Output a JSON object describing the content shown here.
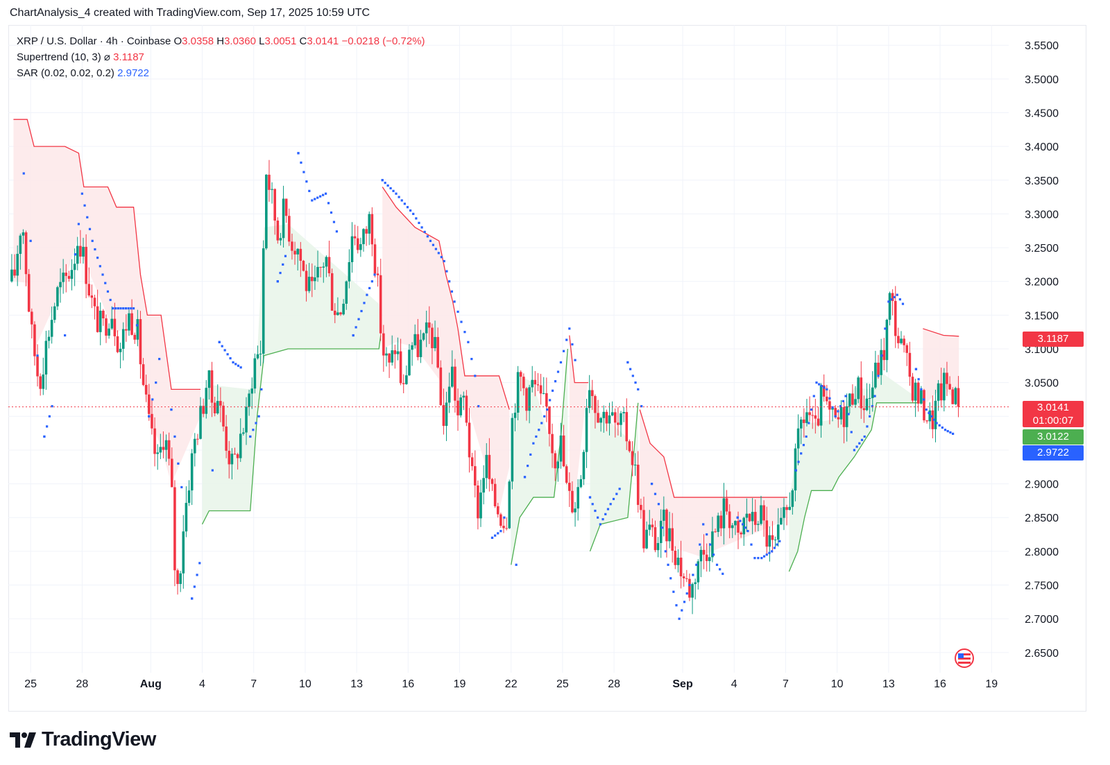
{
  "header": {
    "title": "ChartAnalysis_4 created with TradingView.com, Sep 17, 2025 10:59 UTC"
  },
  "legend": {
    "symbol": "XRP / U.S. Dollar · 4h · Coinbase",
    "o_label": "O",
    "o": "3.0358",
    "h_label": "H",
    "h": "3.0360",
    "l_label": "L",
    "l": "3.0051",
    "c_label": "C",
    "c": "3.0141",
    "change": "−0.0218 (−0.72%)",
    "supertrend_label": "Supertrend (10, 3)",
    "supertrend_eye": "⌀",
    "supertrend_value": "3.1187",
    "sar_label": "SAR (0.02, 0.02, 0.2)",
    "sar_value": "2.9722"
  },
  "price_tags": {
    "supertrend": "3.1187",
    "last": "3.0141",
    "countdown": "01:00:07",
    "green": "3.0122",
    "sar": "2.9722"
  },
  "colors": {
    "up": "#089981",
    "down": "#f23645",
    "sar": "#2962ff",
    "st_up_line": "#4caf50",
    "st_down_line": "#f23645",
    "st_up_fill": "#e8f5e9",
    "st_down_fill": "#fde7e9",
    "grid": "#f0f3fa",
    "axis_text": "#131722"
  },
  "brand": {
    "name": "TradingView"
  },
  "chart_data": {
    "type": "candlestick",
    "title": "XRP / U.S. Dollar · 4h · Coinbase",
    "xlabel": "",
    "ylabel": "",
    "ylim": [
      2.62,
      3.58
    ],
    "y_ticks": [
      "3.5500",
      "3.5000",
      "3.4500",
      "3.4000",
      "3.3500",
      "3.3000",
      "3.2500",
      "3.2000",
      "3.1500",
      "3.1000",
      "3.0500",
      "3.0000",
      "2.9500",
      "2.9000",
      "2.8500",
      "2.8000",
      "2.7500",
      "2.7000",
      "2.6500"
    ],
    "y_tick_values": [
      3.55,
      3.5,
      3.45,
      3.4,
      3.35,
      3.3,
      3.25,
      3.2,
      3.15,
      3.1,
      3.05,
      3.0,
      2.95,
      2.9,
      2.85,
      2.8,
      2.75,
      2.7,
      2.65
    ],
    "x_ticks": [
      {
        "label": "25",
        "day": -6,
        "bold": false
      },
      {
        "label": "28",
        "day": -3,
        "bold": false
      },
      {
        "label": "Aug",
        "day": 1,
        "bold": true
      },
      {
        "label": "4",
        "day": 4,
        "bold": false
      },
      {
        "label": "7",
        "day": 7,
        "bold": false
      },
      {
        "label": "10",
        "day": 10,
        "bold": false
      },
      {
        "label": "13",
        "day": 13,
        "bold": false
      },
      {
        "label": "16",
        "day": 16,
        "bold": false
      },
      {
        "label": "19",
        "day": 19,
        "bold": false
      },
      {
        "label": "22",
        "day": 22,
        "bold": false
      },
      {
        "label": "25",
        "day": 25,
        "bold": false
      },
      {
        "label": "28",
        "day": 28,
        "bold": false
      },
      {
        "label": "Sep",
        "day": 32,
        "bold": true
      },
      {
        "label": "4",
        "day": 35,
        "bold": false
      },
      {
        "label": "7",
        "day": 38,
        "bold": false
      },
      {
        "label": "10",
        "day": 41,
        "bold": false
      },
      {
        "label": "13",
        "day": 44,
        "bold": false
      },
      {
        "label": "16",
        "day": 47,
        "bold": false
      },
      {
        "label": "19",
        "day": 50,
        "bold": false
      }
    ],
    "close_path": [
      [
        -7.0,
        3.2
      ],
      [
        -6.5,
        3.3
      ],
      [
        -6.0,
        3.13
      ],
      [
        -5.5,
        3.05
      ],
      [
        -5.0,
        3.12
      ],
      [
        -4.5,
        3.18
      ],
      [
        -4.0,
        3.2
      ],
      [
        -3.5,
        3.23
      ],
      [
        -3.2,
        3.27
      ],
      [
        -2.8,
        3.22
      ],
      [
        -2.3,
        3.15
      ],
      [
        -1.8,
        3.13
      ],
      [
        -1.3,
        3.16
      ],
      [
        -0.8,
        3.1
      ],
      [
        -0.3,
        3.15
      ],
      [
        0.2,
        3.13
      ],
      [
        0.6,
        3.04
      ],
      [
        1.0,
        2.97
      ],
      [
        1.4,
        2.93
      ],
      [
        1.8,
        2.98
      ],
      [
        2.2,
        2.9
      ],
      [
        2.4,
        2.78
      ],
      [
        2.6,
        2.74
      ],
      [
        2.9,
        2.84
      ],
      [
        3.3,
        2.92
      ],
      [
        3.6,
        2.97
      ],
      [
        4.0,
        3.01
      ],
      [
        4.3,
        3.06
      ],
      [
        4.6,
        3.02
      ],
      [
        4.9,
        3.03
      ],
      [
        5.2,
        2.99
      ],
      [
        5.5,
        2.95
      ],
      [
        5.8,
        2.92
      ],
      [
        6.2,
        2.97
      ],
      [
        6.6,
        3.0
      ],
      [
        7.0,
        3.08
      ],
      [
        7.4,
        3.1
      ],
      [
        7.7,
        3.37
      ],
      [
        8.0,
        3.33
      ],
      [
        8.4,
        3.27
      ],
      [
        8.8,
        3.31
      ],
      [
        9.2,
        3.26
      ],
      [
        9.6,
        3.25
      ],
      [
        10.0,
        3.2
      ],
      [
        10.4,
        3.18
      ],
      [
        10.8,
        3.21
      ],
      [
        11.2,
        3.24
      ],
      [
        11.6,
        3.17
      ],
      [
        12.0,
        3.15
      ],
      [
        12.4,
        3.21
      ],
      [
        12.8,
        3.28
      ],
      [
        13.2,
        3.25
      ],
      [
        13.5,
        3.27
      ],
      [
        13.8,
        3.3
      ],
      [
        14.2,
        3.2
      ],
      [
        14.5,
        3.1
      ],
      [
        14.9,
        3.07
      ],
      [
        15.3,
        3.11
      ],
      [
        15.7,
        3.03
      ],
      [
        16.1,
        3.11
      ],
      [
        16.5,
        3.1
      ],
      [
        16.9,
        3.11
      ],
      [
        17.3,
        3.13
      ],
      [
        17.7,
        3.08
      ],
      [
        18.1,
        2.98
      ],
      [
        18.5,
        3.08
      ],
      [
        18.9,
        3.0
      ],
      [
        19.3,
        3.03
      ],
      [
        19.7,
        2.91
      ],
      [
        20.1,
        2.86
      ],
      [
        20.5,
        2.94
      ],
      [
        20.9,
        2.88
      ],
      [
        21.3,
        2.86
      ],
      [
        21.7,
        2.84
      ],
      [
        22.1,
        3.01
      ],
      [
        22.5,
        3.06
      ],
      [
        22.9,
        3.03
      ],
      [
        23.3,
        3.05
      ],
      [
        23.7,
        3.02
      ],
      [
        24.1,
        3.01
      ],
      [
        24.5,
        2.94
      ],
      [
        24.9,
        2.96
      ],
      [
        25.3,
        2.88
      ],
      [
        25.7,
        2.87
      ],
      [
        26.1,
        2.92
      ],
      [
        26.5,
        3.06
      ],
      [
        26.9,
        3.02
      ],
      [
        27.3,
        3.0
      ],
      [
        27.7,
        3.01
      ],
      [
        28.1,
        2.98
      ],
      [
        28.5,
        2.99
      ],
      [
        28.9,
        2.96
      ],
      [
        29.3,
        2.91
      ],
      [
        29.7,
        2.82
      ],
      [
        30.1,
        2.83
      ],
      [
        30.5,
        2.81
      ],
      [
        30.9,
        2.84
      ],
      [
        31.3,
        2.82
      ],
      [
        31.7,
        2.79
      ],
      [
        32.1,
        2.76
      ],
      [
        32.5,
        2.74
      ],
      [
        32.9,
        2.79
      ],
      [
        33.3,
        2.8
      ],
      [
        33.7,
        2.82
      ],
      [
        34.1,
        2.84
      ],
      [
        34.5,
        2.87
      ],
      [
        34.9,
        2.84
      ],
      [
        35.3,
        2.81
      ],
      [
        35.7,
        2.86
      ],
      [
        36.1,
        2.84
      ],
      [
        36.5,
        2.86
      ],
      [
        36.9,
        2.82
      ],
      [
        37.3,
        2.8
      ],
      [
        37.7,
        2.83
      ],
      [
        38.1,
        2.86
      ],
      [
        38.5,
        2.92
      ],
      [
        38.9,
        2.99
      ],
      [
        39.3,
        3.01
      ],
      [
        39.7,
        2.97
      ],
      [
        40.1,
        3.03
      ],
      [
        40.5,
        3.0
      ],
      [
        40.9,
        2.99
      ],
      [
        41.3,
        3.0
      ],
      [
        41.7,
        3.02
      ],
      [
        42.1,
        3.05
      ],
      [
        42.5,
        3.02
      ],
      [
        42.9,
        3.03
      ],
      [
        43.3,
        3.07
      ],
      [
        43.7,
        3.09
      ],
      [
        44.1,
        3.18
      ],
      [
        44.5,
        3.12
      ],
      [
        44.9,
        3.09
      ],
      [
        45.3,
        3.05
      ],
      [
        45.7,
        3.03
      ],
      [
        46.1,
        3.01
      ],
      [
        46.5,
        2.99
      ],
      [
        46.9,
        3.03
      ],
      [
        47.3,
        3.05
      ],
      [
        47.7,
        3.04
      ],
      [
        48.1,
        3.014
      ]
    ],
    "supertrend_path": [
      [
        -7.0,
        3.44,
        "down"
      ],
      [
        -6.2,
        3.44,
        "down"
      ],
      [
        -5.8,
        3.4,
        "down"
      ],
      [
        -4.0,
        3.4,
        "down"
      ],
      [
        -3.2,
        3.39,
        "down"
      ],
      [
        -2.9,
        3.34,
        "down"
      ],
      [
        -1.5,
        3.34,
        "down"
      ],
      [
        -1.0,
        3.31,
        "down"
      ],
      [
        0.0,
        3.31,
        "down"
      ],
      [
        0.4,
        3.21,
        "down"
      ],
      [
        0.8,
        3.15,
        "down"
      ],
      [
        1.6,
        3.15,
        "down"
      ],
      [
        2.2,
        3.04,
        "down"
      ],
      [
        3.9,
        3.04,
        "down"
      ],
      [
        4.0,
        2.84,
        "up"
      ],
      [
        4.4,
        2.86,
        "up"
      ],
      [
        6.8,
        2.86,
        "up"
      ],
      [
        7.2,
        3.0,
        "up"
      ],
      [
        7.6,
        3.09,
        "up"
      ],
      [
        9.0,
        3.1,
        "up"
      ],
      [
        14.3,
        3.1,
        "up"
      ],
      [
        14.4,
        3.12,
        "up"
      ],
      [
        14.5,
        3.34,
        "down"
      ],
      [
        15.3,
        3.31,
        "down"
      ],
      [
        16.4,
        3.28,
        "down"
      ],
      [
        17.8,
        3.26,
        "down"
      ],
      [
        18.2,
        3.21,
        "down"
      ],
      [
        18.6,
        3.17,
        "down"
      ],
      [
        18.9,
        3.13,
        "down"
      ],
      [
        19.3,
        3.06,
        "down"
      ],
      [
        21.3,
        3.06,
        "down"
      ],
      [
        21.9,
        3.01,
        "down"
      ],
      [
        22.0,
        2.78,
        "up"
      ],
      [
        22.5,
        2.85,
        "up"
      ],
      [
        23.3,
        2.88,
        "up"
      ],
      [
        24.5,
        2.88,
        "up"
      ],
      [
        24.9,
        2.97,
        "up"
      ],
      [
        25.3,
        3.1,
        "up"
      ],
      [
        25.4,
        3.12,
        "down"
      ],
      [
        25.7,
        3.05,
        "down"
      ],
      [
        26.5,
        3.05,
        "down"
      ],
      [
        26.6,
        2.8,
        "up"
      ],
      [
        27.2,
        2.84,
        "up"
      ],
      [
        28.8,
        2.85,
        "up"
      ],
      [
        29.2,
        2.96,
        "up"
      ],
      [
        29.4,
        3.02,
        "up"
      ],
      [
        29.5,
        3.01,
        "down"
      ],
      [
        30.1,
        2.96,
        "down"
      ],
      [
        30.9,
        2.94,
        "down"
      ],
      [
        31.5,
        2.88,
        "down"
      ],
      [
        33.0,
        2.88,
        "down"
      ],
      [
        37.9,
        2.88,
        "down"
      ],
      [
        38.1,
        2.88,
        "down"
      ],
      [
        38.2,
        2.77,
        "up"
      ],
      [
        38.7,
        2.8,
        "up"
      ],
      [
        39.1,
        2.85,
        "up"
      ],
      [
        39.5,
        2.89,
        "up"
      ],
      [
        40.7,
        2.89,
        "up"
      ],
      [
        41.1,
        2.91,
        "up"
      ],
      [
        42.0,
        2.94,
        "up"
      ],
      [
        43.0,
        2.98,
        "up"
      ],
      [
        43.3,
        3.02,
        "up"
      ],
      [
        45.8,
        3.02,
        "up"
      ],
      [
        46.0,
        3.13,
        "down"
      ],
      [
        47.2,
        3.12,
        "down"
      ],
      [
        48.1,
        3.1187,
        "down"
      ]
    ],
    "sar_path": [
      [
        -7.0,
        3.5
      ],
      [
        -6.4,
        3.36
      ],
      [
        -6.0,
        3.26
      ],
      [
        -5.6,
        3.09
      ],
      [
        -5.2,
        2.97
      ],
      [
        -4.6,
        3.03
      ],
      [
        -4.0,
        3.12
      ],
      [
        -3.4,
        3.24
      ],
      [
        -3.0,
        3.33
      ],
      [
        -2.4,
        3.26
      ],
      [
        -1.8,
        3.21
      ],
      [
        -1.2,
        3.16
      ],
      [
        -0.6,
        3.16
      ],
      [
        0.0,
        3.16
      ],
      [
        0.4,
        3.11
      ],
      [
        0.9,
        3.0
      ],
      [
        1.3,
        3.05
      ],
      [
        1.7,
        3.12
      ],
      [
        2.2,
        3.01
      ],
      [
        2.6,
        2.93
      ],
      [
        3.0,
        2.86
      ],
      [
        3.4,
        2.73
      ],
      [
        4.0,
        2.8
      ],
      [
        4.6,
        2.92
      ],
      [
        5.0,
        3.11
      ],
      [
        5.8,
        3.08
      ],
      [
        6.4,
        3.07
      ],
      [
        6.8,
        2.97
      ],
      [
        7.3,
        3.0
      ],
      [
        7.6,
        3.08
      ],
      [
        8.4,
        3.2
      ],
      [
        9.0,
        3.25
      ],
      [
        9.6,
        3.39
      ],
      [
        10.4,
        3.32
      ],
      [
        11.2,
        3.33
      ],
      [
        12.0,
        3.26
      ],
      [
        12.8,
        3.12
      ],
      [
        13.6,
        3.18
      ],
      [
        14.2,
        3.22
      ],
      [
        14.5,
        3.35
      ],
      [
        15.3,
        3.33
      ],
      [
        16.3,
        3.3
      ],
      [
        17.3,
        3.26
      ],
      [
        18.1,
        3.23
      ],
      [
        18.7,
        3.17
      ],
      [
        19.1,
        3.14
      ],
      [
        19.5,
        3.11
      ],
      [
        19.9,
        3.06
      ],
      [
        20.3,
        2.97
      ],
      [
        20.9,
        2.82
      ],
      [
        21.4,
        2.83
      ],
      [
        21.8,
        2.87
      ],
      [
        22.3,
        2.78
      ],
      [
        22.8,
        2.91
      ],
      [
        23.3,
        2.96
      ],
      [
        24.1,
        3.01
      ],
      [
        24.9,
        3.08
      ],
      [
        25.4,
        3.13
      ],
      [
        25.9,
        3.06
      ],
      [
        26.6,
        2.88
      ],
      [
        27.2,
        2.84
      ],
      [
        27.8,
        2.87
      ],
      [
        28.5,
        2.9
      ],
      [
        28.8,
        3.08
      ],
      [
        29.4,
        3.04
      ],
      [
        29.8,
        2.99
      ],
      [
        30.2,
        2.9
      ],
      [
        30.6,
        2.87
      ],
      [
        31.0,
        2.8
      ],
      [
        31.3,
        2.76
      ],
      [
        31.8,
        2.7
      ],
      [
        32.4,
        2.75
      ],
      [
        32.8,
        2.78
      ],
      [
        33.2,
        2.84
      ],
      [
        33.6,
        2.81
      ],
      [
        34.0,
        2.78
      ],
      [
        34.5,
        2.76
      ],
      [
        35.2,
        2.85
      ],
      [
        35.8,
        2.83
      ],
      [
        36.2,
        2.79
      ],
      [
        36.6,
        2.79
      ],
      [
        37.2,
        2.8
      ],
      [
        37.8,
        2.82
      ],
      [
        38.6,
        2.92
      ],
      [
        39.2,
        2.97
      ],
      [
        39.8,
        3.05
      ],
      [
        40.4,
        3.04
      ],
      [
        40.9,
        3.0
      ],
      [
        41.5,
        3.03
      ],
      [
        42.0,
        2.95
      ],
      [
        42.6,
        2.97
      ],
      [
        43.2,
        3.03
      ],
      [
        43.6,
        3.09
      ],
      [
        44.0,
        3.17
      ],
      [
        44.5,
        3.18
      ],
      [
        45.0,
        3.16
      ],
      [
        45.6,
        3.07
      ],
      [
        46.2,
        3.01
      ],
      [
        46.8,
        2.99
      ],
      [
        47.3,
        2.98
      ],
      [
        47.9,
        2.9722
      ]
    ],
    "last_price": 3.0141,
    "annotations": [
      "3.1187",
      "3.0141",
      "01:00:07",
      "3.0122",
      "2.9722"
    ]
  }
}
